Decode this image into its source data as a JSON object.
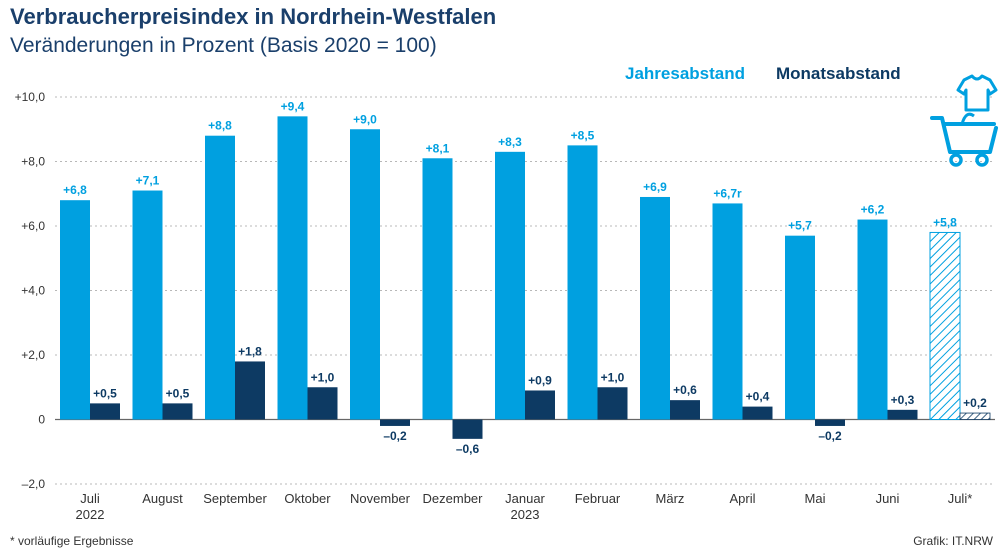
{
  "colors": {
    "jahresabstand": "#00a0e0",
    "monatsabstand": "#0d3a63",
    "grid": "#b8b8b8",
    "text_dark": "#1a3f6b"
  },
  "icons": [
    "shopping-cart-icon",
    "tshirt-icon"
  ],
  "footnote": "* vorläufige Ergebnisse",
  "source": "Grafik: IT.NRW",
  "chart_data": {
    "type": "bar",
    "title": "Verbraucherpreisindex in Nordrhein-Westfalen",
    "subtitle": "Veränderungen in Prozent (Basis 2020 = 100)",
    "xlabel": "",
    "ylabel": "",
    "ylim": [
      -2.0,
      10.0
    ],
    "yticks": [
      "+10,0",
      "+8,0",
      "+6,0",
      "+4,0",
      "+2,0",
      "0",
      "–2,0"
    ],
    "ytick_values": [
      10,
      8,
      6,
      4,
      2,
      0,
      -2
    ],
    "grid": true,
    "legend_position": "top-right",
    "categories": [
      "Juli",
      "August",
      "September",
      "Oktober",
      "November",
      "Dezember",
      "Januar",
      "Februar",
      "März",
      "April",
      "Mai",
      "Juni",
      "Juli*"
    ],
    "category_sublabels": [
      "2022",
      "",
      "",
      "",
      "",
      "",
      "2023",
      "",
      "",
      "",
      "",
      "",
      ""
    ],
    "preliminary_index": 12,
    "series": [
      {
        "name": "Jahresabstand",
        "values": [
          6.8,
          7.1,
          8.8,
          9.4,
          9.0,
          8.1,
          8.3,
          8.5,
          6.9,
          6.7,
          5.7,
          6.2,
          5.8
        ],
        "labels": [
          "+6,8",
          "+7,1",
          "+8,8",
          "+9,4",
          "+9,0",
          "+8,1",
          "+8,3",
          "+8,5",
          "+6,9",
          "+6,7r",
          "+5,7",
          "+6,2",
          "+5,8"
        ]
      },
      {
        "name": "Monatsabstand",
        "values": [
          0.5,
          0.5,
          1.8,
          1.0,
          -0.2,
          -0.6,
          0.9,
          1.0,
          0.6,
          0.4,
          -0.2,
          0.3,
          0.2
        ],
        "labels": [
          "+0,5",
          "+0,5",
          "+1,8",
          "+1,0",
          "–0,2",
          "–0,6",
          "+0,9",
          "+1,0",
          "+0,6",
          "+0,4",
          "–0,2",
          "+0,3",
          "+0,2"
        ]
      }
    ]
  }
}
